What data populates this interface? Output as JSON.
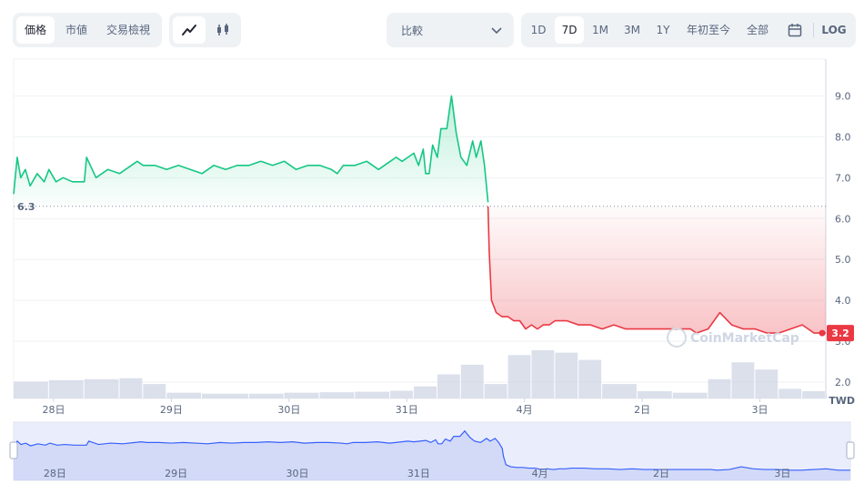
{
  "toolbar": {
    "metric_tabs": [
      {
        "label": "価格",
        "active": true
      },
      {
        "label": "市値",
        "active": false
      },
      {
        "label": "交易檢視",
        "active": false
      }
    ],
    "chart_type_icons": [
      "line-chart-icon",
      "candlestick-icon"
    ],
    "compare_label": "比較",
    "ranges": [
      {
        "label": "1D",
        "active": false
      },
      {
        "label": "7D",
        "active": true
      },
      {
        "label": "1M",
        "active": false
      },
      {
        "label": "3M",
        "active": false
      },
      {
        "label": "1Y",
        "active": false
      },
      {
        "label": "年初至今",
        "active": false
      },
      {
        "label": "全部",
        "active": false
      }
    ],
    "calendar_icon": "calendar-icon",
    "log_label": "LOG"
  },
  "chart_data": {
    "type": "area",
    "baseline_label": "6.3",
    "baseline_value": 6.3,
    "current_label": "3.2",
    "current_value": 3.2,
    "currency_label": "TWD",
    "watermark": "CoinMarketCap",
    "y_ticks": [
      "9.0",
      "8.0",
      "7.0",
      "6.0",
      "5.0",
      "4.0",
      "3.0",
      "2.0"
    ],
    "ylim": [
      1.6,
      9.9
    ],
    "x_ticks": [
      "28日",
      "29日",
      "30日",
      "31日",
      "4月",
      "2日",
      "3日"
    ],
    "x_tick_times": [
      0.34,
      1.34,
      2.34,
      3.34,
      4.34,
      5.34,
      6.34
    ],
    "xlim": [
      0,
      6.9
    ],
    "series": [
      {
        "x": [
          0,
          0.03,
          0.06,
          0.1,
          0.14,
          0.2,
          0.26,
          0.3,
          0.36,
          0.42,
          0.5,
          0.6,
          0.62,
          0.7,
          0.8,
          0.9,
          1.0,
          1.05,
          1.1,
          1.2,
          1.3,
          1.4,
          1.5,
          1.6,
          1.7,
          1.8,
          1.9,
          2.0,
          2.1,
          2.2,
          2.3,
          2.4,
          2.5,
          2.6,
          2.7,
          2.75,
          2.8,
          2.9,
          3.0,
          3.1,
          3.2,
          3.25,
          3.3,
          3.35,
          3.4,
          3.44,
          3.48,
          3.5,
          3.53,
          3.56,
          3.6,
          3.63,
          3.68,
          3.72,
          3.76,
          3.8,
          3.85,
          3.9,
          3.93,
          3.97,
          4.0,
          4.03
        ],
        "values": [
          6.6,
          7.5,
          7.0,
          7.2,
          6.8,
          7.1,
          6.9,
          7.2,
          6.9,
          7.0,
          6.9,
          6.9,
          7.5,
          7.0,
          7.2,
          7.1,
          7.3,
          7.4,
          7.3,
          7.3,
          7.2,
          7.3,
          7.2,
          7.1,
          7.3,
          7.2,
          7.3,
          7.3,
          7.4,
          7.3,
          7.4,
          7.2,
          7.3,
          7.3,
          7.2,
          7.1,
          7.3,
          7.3,
          7.4,
          7.2,
          7.4,
          7.5,
          7.4,
          7.5,
          7.6,
          7.3,
          7.7,
          7.1,
          7.1,
          7.8,
          7.5,
          8.2,
          8.2,
          9.0,
          8.1,
          7.5,
          7.3,
          7.9,
          7.5,
          7.9,
          7.3,
          6.4
        ]
      },
      {
        "x": [
          4.03,
          4.04,
          4.06,
          4.1,
          4.15,
          4.2,
          4.25,
          4.3,
          4.35,
          4.4,
          4.45,
          4.5,
          4.55,
          4.6,
          4.65,
          4.7,
          4.8,
          4.9,
          5.0,
          5.1,
          5.2,
          5.3,
          5.4,
          5.5,
          5.6,
          5.7,
          5.75,
          5.8,
          5.9,
          6.0,
          6.1,
          6.2,
          6.3,
          6.4,
          6.5,
          6.6,
          6.7,
          6.8,
          6.9
        ],
        "values": [
          6.3,
          5.2,
          4.0,
          3.7,
          3.6,
          3.6,
          3.5,
          3.5,
          3.3,
          3.4,
          3.3,
          3.4,
          3.4,
          3.5,
          3.5,
          3.5,
          3.4,
          3.4,
          3.3,
          3.4,
          3.3,
          3.3,
          3.3,
          3.3,
          3.3,
          3.3,
          3.3,
          3.2,
          3.3,
          3.7,
          3.4,
          3.3,
          3.3,
          3.2,
          3.2,
          3.3,
          3.4,
          3.2,
          3.2
        ]
      }
    ],
    "volume": {
      "x": [
        0.0,
        0.3,
        0.6,
        0.9,
        1.1,
        1.3,
        1.6,
        2.0,
        2.3,
        2.6,
        2.9,
        3.2,
        3.4,
        3.6,
        3.8,
        4.0,
        4.2,
        4.4,
        4.6,
        4.8,
        5.0,
        5.3,
        5.6,
        5.9,
        6.1,
        6.3,
        6.5,
        6.7,
        6.9
      ],
      "values": [
        0.35,
        0.38,
        0.4,
        0.42,
        0.3,
        0.12,
        0.1,
        0.1,
        0.12,
        0.13,
        0.14,
        0.16,
        0.25,
        0.5,
        0.7,
        0.3,
        0.9,
        1.0,
        0.95,
        0.8,
        0.3,
        0.15,
        0.12,
        0.4,
        0.75,
        0.6,
        0.2,
        0.15,
        0.1
      ]
    },
    "navigator": {
      "x_ticks": [
        "28日",
        "29日",
        "30日",
        "31日",
        "4月",
        "2日",
        "3日"
      ]
    }
  }
}
